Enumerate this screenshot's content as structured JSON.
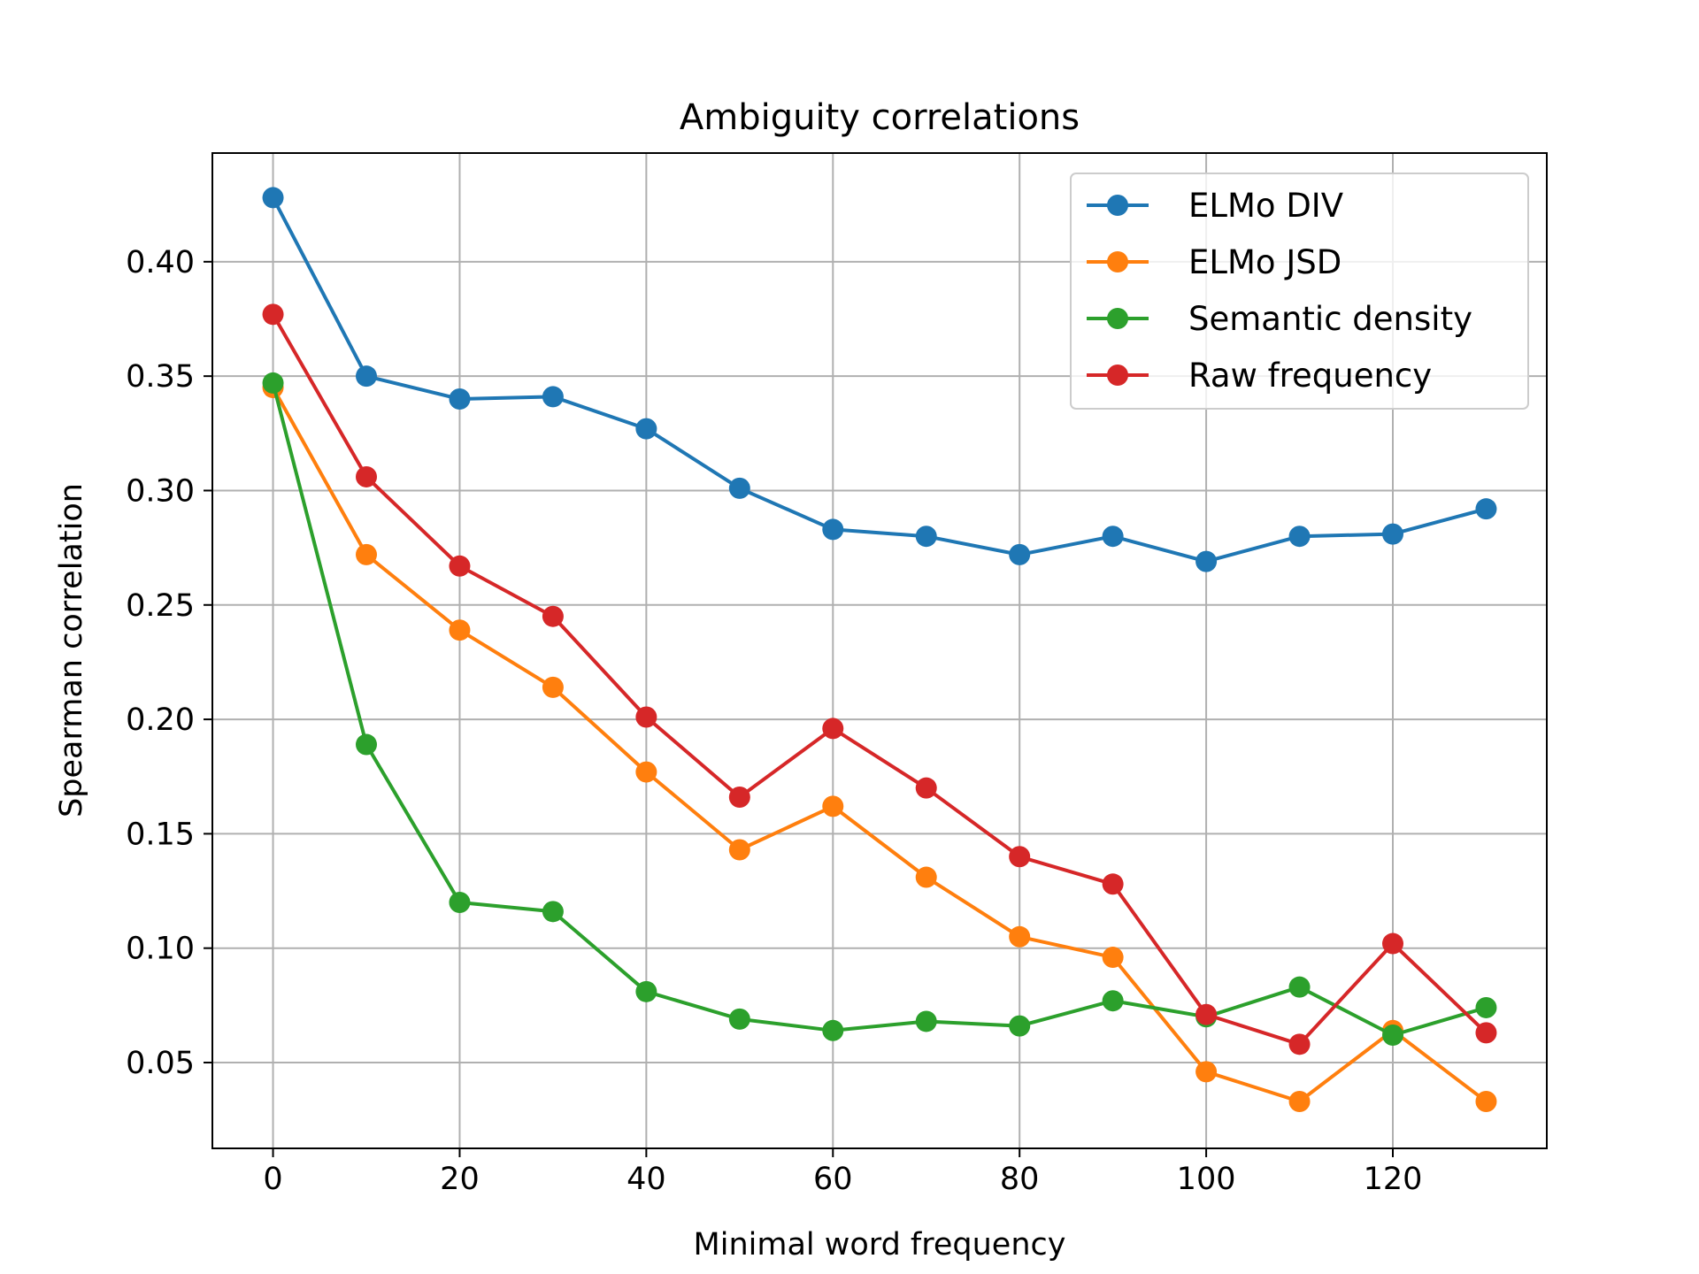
{
  "chart_data": {
    "type": "line",
    "title": "Ambiguity correlations",
    "xlabel": "Minimal word frequency",
    "ylabel": "Spearman correlation",
    "x": [
      0,
      10,
      20,
      30,
      40,
      50,
      60,
      70,
      80,
      90,
      100,
      110,
      120,
      130
    ],
    "xlim": [
      -6.5,
      136.5
    ],
    "ylim": [
      0.0125,
      0.4475
    ],
    "xticks": [
      0,
      20,
      40,
      60,
      80,
      100,
      120
    ],
    "xtick_labels": [
      "0",
      "20",
      "40",
      "60",
      "80",
      "100",
      "120"
    ],
    "yticks": [
      0.05,
      0.1,
      0.15,
      0.2,
      0.25,
      0.3,
      0.35,
      0.4
    ],
    "ytick_labels": [
      "0.05",
      "0.10",
      "0.15",
      "0.20",
      "0.25",
      "0.30",
      "0.35",
      "0.40"
    ],
    "grid": true,
    "legend_position": "top-right",
    "series": [
      {
        "name": "ELMo DIV",
        "color": "#1f77b4",
        "values": [
          0.428,
          0.35,
          0.34,
          0.341,
          0.327,
          0.301,
          0.283,
          0.28,
          0.272,
          0.28,
          0.269,
          0.28,
          0.281,
          0.292
        ]
      },
      {
        "name": "ELMo JSD",
        "color": "#ff7f0e",
        "values": [
          0.345,
          0.272,
          0.239,
          0.214,
          0.177,
          0.143,
          0.162,
          0.131,
          0.105,
          0.096,
          0.046,
          0.033,
          0.064,
          0.033
        ]
      },
      {
        "name": "Semantic density",
        "color": "#2ca02c",
        "values": [
          0.347,
          0.189,
          0.12,
          0.116,
          0.081,
          0.069,
          0.064,
          0.068,
          0.066,
          0.077,
          0.07,
          0.083,
          0.062,
          0.074
        ]
      },
      {
        "name": "Raw frequency",
        "color": "#d62728",
        "values": [
          0.377,
          0.306,
          0.267,
          0.245,
          0.201,
          0.166,
          0.196,
          0.17,
          0.14,
          0.128,
          0.071,
          0.058,
          0.102,
          0.063
        ]
      }
    ]
  }
}
